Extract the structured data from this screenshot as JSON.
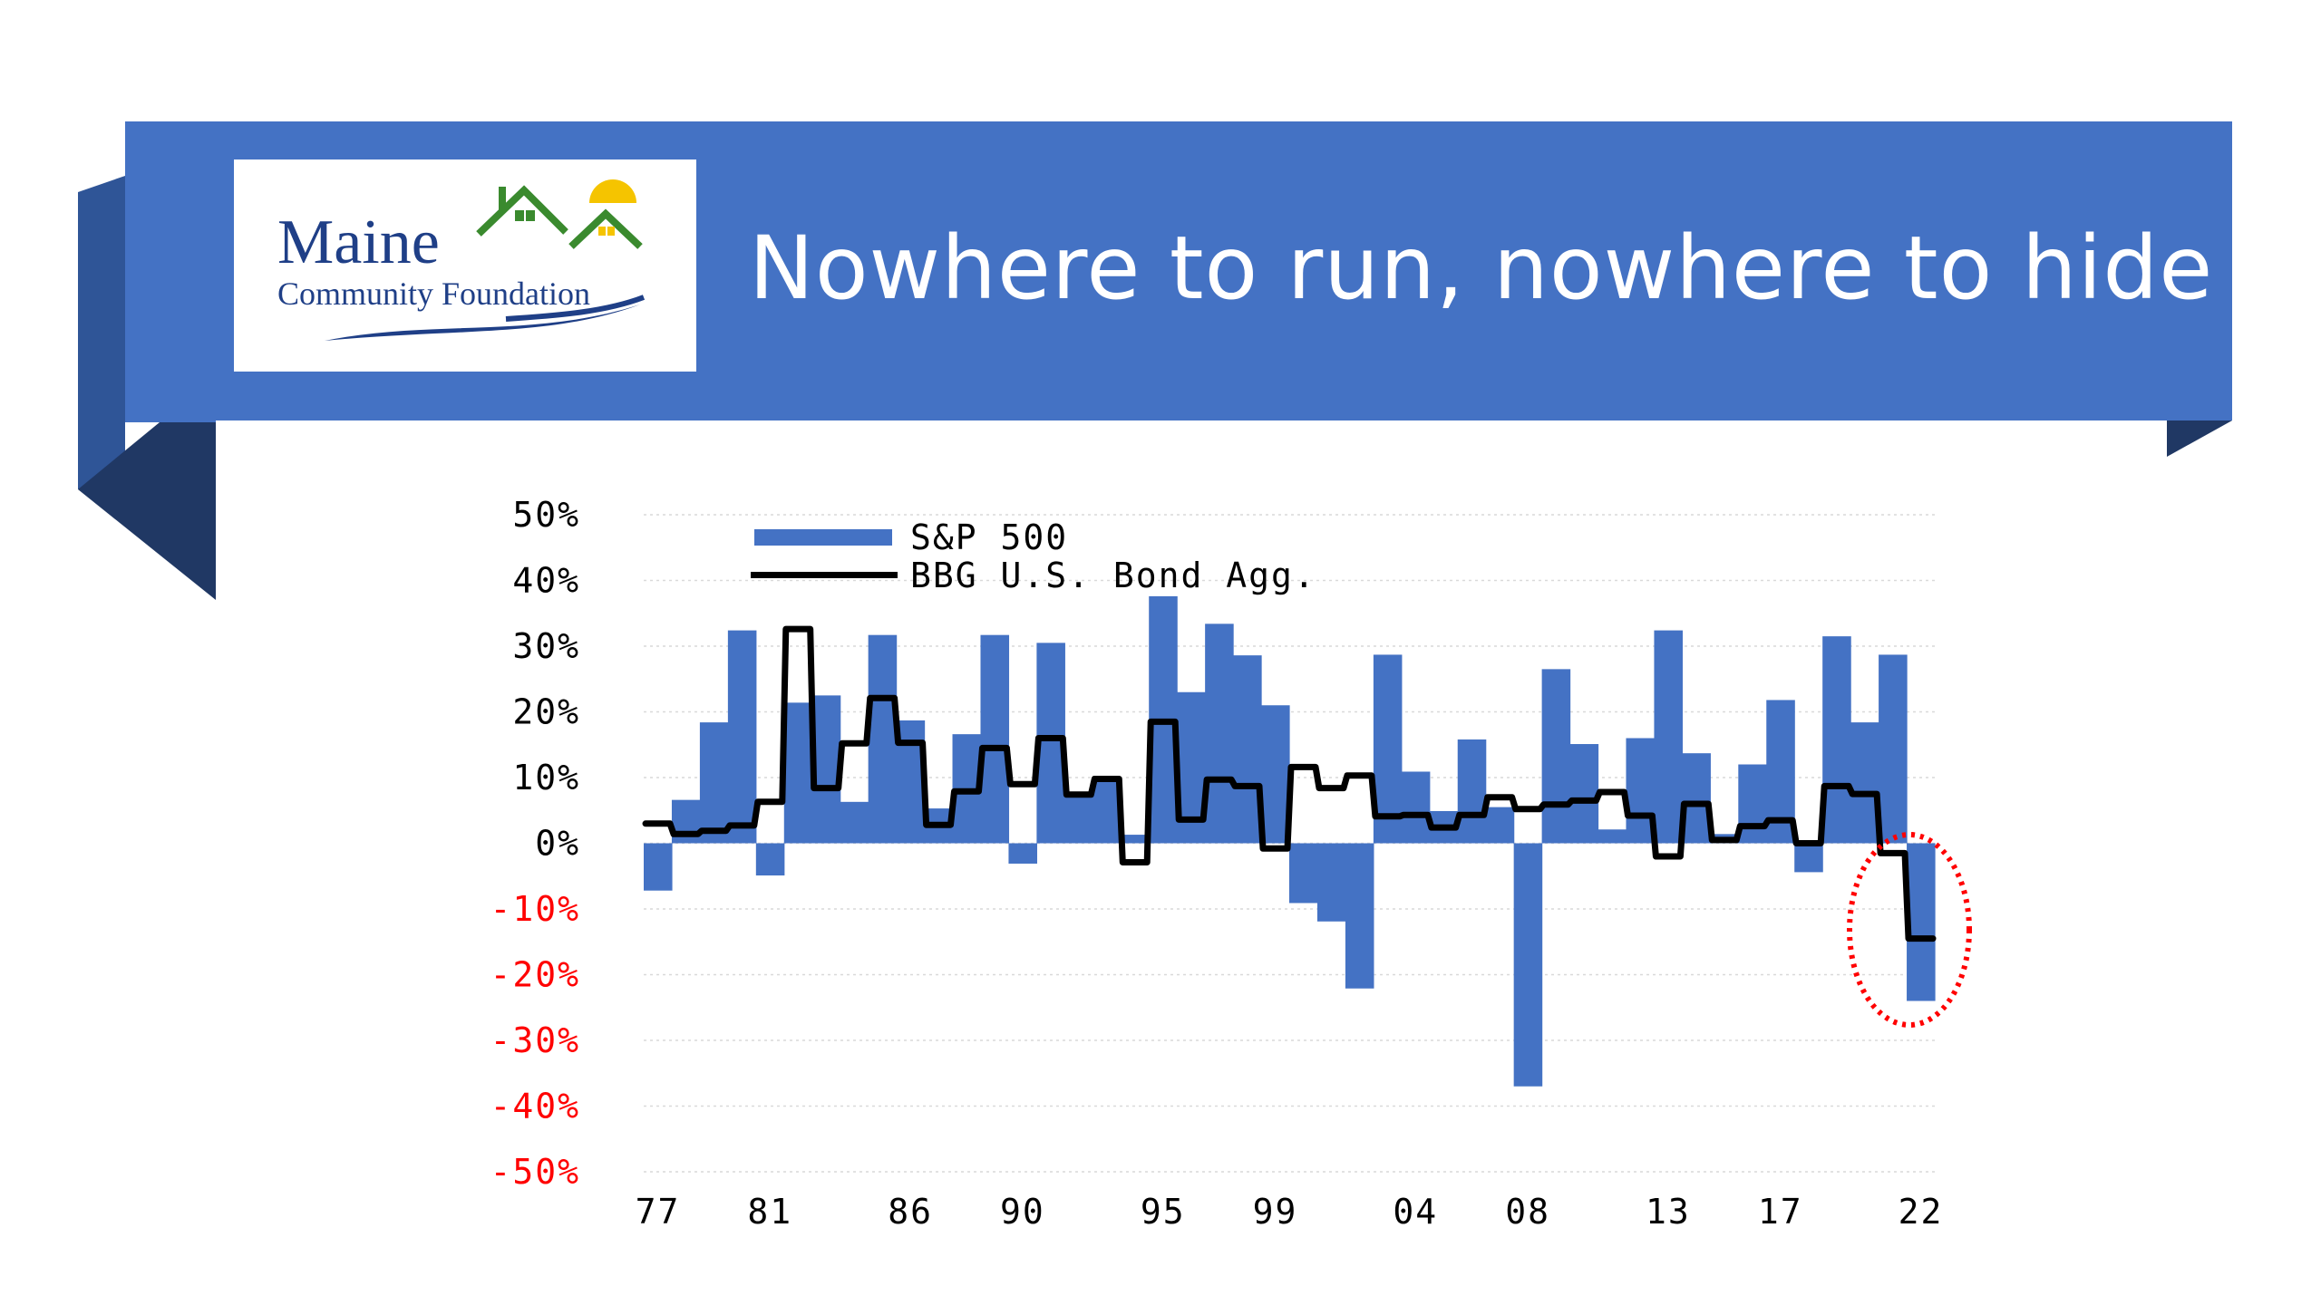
{
  "slide": {
    "title": "Nowhere to run, nowhere to hide",
    "logo_line1": "Maine",
    "logo_line2": "Community Foundation"
  },
  "colors": {
    "ribbon": "#4472c4",
    "ribbon_fold_dark": "#203864",
    "ribbon_fold_mid": "#2f5597",
    "bar": "#4472c4",
    "line": "#000000",
    "negative_tick": "#ff0000",
    "highlight_circle": "#ff0000",
    "logo_text": "#1f3f87",
    "logo_green": "#3a8a2e",
    "logo_yellow": "#f5c400"
  },
  "chart_data": {
    "type": "bar",
    "x": [
      1977,
      1978,
      1979,
      1980,
      1981,
      1982,
      1983,
      1984,
      1985,
      1986,
      1987,
      1988,
      1989,
      1990,
      1991,
      1992,
      1993,
      1994,
      1995,
      1996,
      1997,
      1998,
      1999,
      2000,
      2001,
      2002,
      2003,
      2004,
      2005,
      2006,
      2007,
      2008,
      2009,
      2010,
      2011,
      2012,
      2013,
      2014,
      2015,
      2016,
      2017,
      2018,
      2019,
      2020,
      2021,
      2022
    ],
    "x_tick_labels": [
      "77",
      "81",
      "86",
      "90",
      "95",
      "99",
      "04",
      "08",
      "13",
      "17",
      "22"
    ],
    "x_tick_years": [
      1977,
      1981,
      1986,
      1990,
      1995,
      1999,
      2004,
      2008,
      2013,
      2017,
      2022
    ],
    "y_tick_labels": [
      "50%",
      "40%",
      "30%",
      "20%",
      "10%",
      "0%",
      "-10%",
      "-20%",
      "-30%",
      "-40%",
      "-50%"
    ],
    "ylim": [
      -50,
      50
    ],
    "grid": true,
    "legend_position": "top-left",
    "series": [
      {
        "name": "S&P 500",
        "type": "bar",
        "values": [
          -7.2,
          6.6,
          18.4,
          32.4,
          -4.9,
          21.4,
          22.5,
          6.3,
          31.7,
          18.7,
          5.3,
          16.6,
          31.7,
          -3.1,
          30.5,
          7.6,
          10.1,
          1.3,
          37.6,
          23.0,
          33.4,
          28.6,
          21.0,
          -9.1,
          -11.9,
          -22.1,
          28.7,
          10.9,
          4.9,
          15.8,
          5.5,
          -37.0,
          26.5,
          15.1,
          2.1,
          16.0,
          32.4,
          13.7,
          1.4,
          12.0,
          21.8,
          -4.4,
          31.5,
          18.4,
          28.7,
          -24.0
        ]
      },
      {
        "name": "BBG U.S. Bond Agg.",
        "type": "line",
        "values": [
          3.0,
          1.4,
          1.9,
          2.7,
          6.3,
          32.6,
          8.4,
          15.2,
          22.1,
          15.3,
          2.8,
          7.9,
          14.5,
          9.0,
          16.0,
          7.4,
          9.8,
          -2.9,
          18.5,
          3.6,
          9.7,
          8.7,
          -0.8,
          11.6,
          8.4,
          10.3,
          4.1,
          4.3,
          2.4,
          4.3,
          7.0,
          5.2,
          5.9,
          6.5,
          7.8,
          4.2,
          -2.0,
          6.0,
          0.5,
          2.6,
          3.5,
          0.0,
          8.7,
          7.5,
          -1.5,
          -14.5
        ]
      }
    ]
  }
}
